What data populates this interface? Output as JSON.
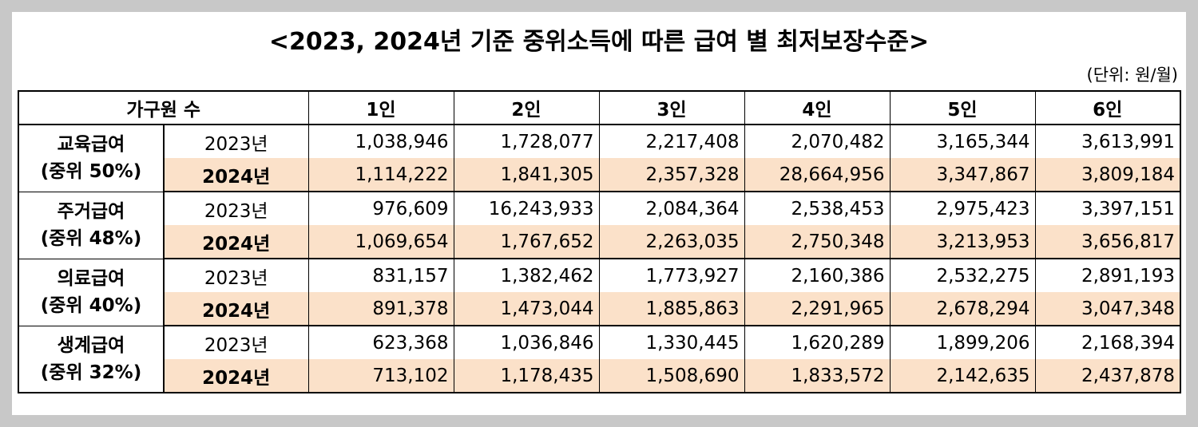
{
  "title": "<2023, 2024년 기준 중위소득에 따른 급여 별 최저보장수준>",
  "unit": "(단위: 원/월)",
  "header": {
    "household": "가구원 수",
    "sizes": [
      "1인",
      "2인",
      "3인",
      "4인",
      "5인",
      "6인"
    ]
  },
  "groups": [
    {
      "name": "교육급여",
      "median": "(중위 50%)",
      "rows": [
        {
          "year": "2023년",
          "values": [
            "1,038,946",
            "1,728,077",
            "2,217,408",
            "2,070,482",
            "3,165,344",
            "3,613,991"
          ]
        },
        {
          "year": "2024년",
          "values": [
            "1,114,222",
            "1,841,305",
            "2,357,328",
            "28,664,956",
            "3,347,867",
            "3,809,184"
          ]
        }
      ]
    },
    {
      "name": "주거급여",
      "median": "(중위 48%)",
      "rows": [
        {
          "year": "2023년",
          "values": [
            "976,609",
            "16,243,933",
            "2,084,364",
            "2,538,453",
            "2,975,423",
            "3,397,151"
          ]
        },
        {
          "year": "2024년",
          "values": [
            "1,069,654",
            "1,767,652",
            "2,263,035",
            "2,750,348",
            "3,213,953",
            "3,656,817"
          ]
        }
      ]
    },
    {
      "name": "의료급여",
      "median": "(중위 40%)",
      "rows": [
        {
          "year": "2023년",
          "values": [
            "831,157",
            "1,382,462",
            "1,773,927",
            "2,160,386",
            "2,532,275",
            "2,891,193"
          ]
        },
        {
          "year": "2024년",
          "values": [
            "891,378",
            "1,473,044",
            "1,885,863",
            "2,291,965",
            "2,678,294",
            "3,047,348"
          ]
        }
      ]
    },
    {
      "name": "생계급여",
      "median": "(중위 32%)",
      "rows": [
        {
          "year": "2023년",
          "values": [
            "623,368",
            "1,036,846",
            "1,330,445",
            "1,620,289",
            "1,899,206",
            "2,168,394"
          ]
        },
        {
          "year": "2024년",
          "values": [
            "713,102",
            "1,178,435",
            "1,508,690",
            "1,833,572",
            "2,142,635",
            "2,437,878"
          ]
        }
      ]
    }
  ],
  "colors": {
    "highlight_2024": "#fbe1c9",
    "background": "#c8c8c8"
  }
}
